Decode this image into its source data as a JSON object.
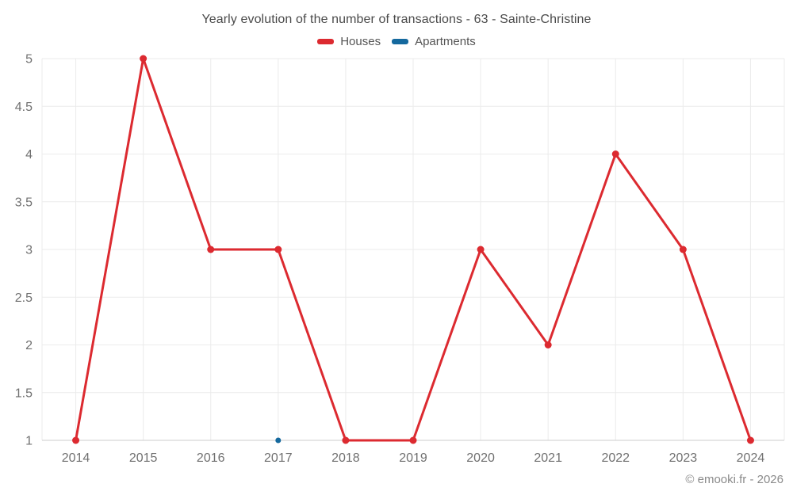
{
  "title": "Yearly evolution of the number of transactions - 63 - Sainte-Christine",
  "watermark": "© emooki.fr - 2026",
  "colors": {
    "houses": "#dc2a30",
    "apartments": "#15699e",
    "grid": "#ebebeb",
    "axis_line": "#cccccc",
    "tick_text": "#707070",
    "title_text": "#4a4a4a",
    "legend_text": "#545454",
    "watermark_text": "#8a8a8a",
    "background": "#ffffff"
  },
  "legend": {
    "items": [
      {
        "label": "Houses",
        "color": "#dc2a30"
      },
      {
        "label": "Apartments",
        "color": "#15699e"
      }
    ]
  },
  "chart_data": {
    "type": "line",
    "title": "Yearly evolution of the number of transactions - 63 - Sainte-Christine",
    "xlabel": "",
    "ylabel": "",
    "categories": [
      "2014",
      "2015",
      "2016",
      "2017",
      "2018",
      "2019",
      "2020",
      "2021",
      "2022",
      "2023",
      "2024"
    ],
    "series": [
      {
        "name": "Houses",
        "color": "#dc2a30",
        "values": [
          1,
          5,
          3,
          3,
          1,
          1,
          3,
          2,
          4,
          3,
          1
        ]
      },
      {
        "name": "Apartments",
        "color": "#15699e",
        "values": [
          null,
          null,
          null,
          1,
          null,
          null,
          null,
          null,
          null,
          null,
          null
        ]
      }
    ],
    "ylim": [
      1,
      5
    ],
    "yticks": [
      "1",
      "1.5",
      "2",
      "2.5",
      "3",
      "3.5",
      "4",
      "4.5",
      "5"
    ],
    "grid": true,
    "legend_position": "top"
  }
}
